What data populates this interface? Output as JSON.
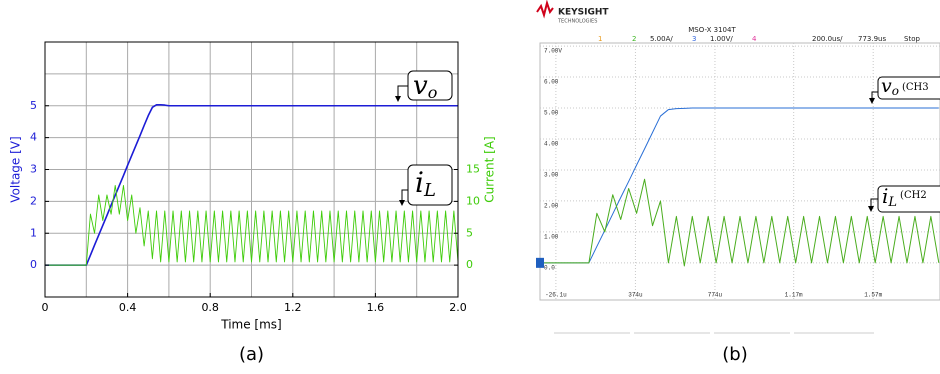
{
  "chart_data": [
    {
      "type": "line",
      "caption": "(a)",
      "xlabel": "Time [ms]",
      "ylabel": "Voltage [V]",
      "y2label": "Current [A]",
      "xlim": [
        0,
        2
      ],
      "xticks": [
        0,
        0.4,
        0.8,
        1.2,
        1.6,
        {
          "value": 2,
          "label": "2.0"
        }
      ],
      "xminor": [
        0.2,
        0.6,
        1.0,
        1.4,
        1.8
      ],
      "ylim": [
        -1,
        7
      ],
      "yticks": [
        0,
        1,
        2,
        3,
        4,
        5
      ],
      "yminor": [
        6
      ],
      "y2lim": [
        -5,
        35
      ],
      "y2ticks": [
        0,
        5,
        10,
        15
      ],
      "grid": true,
      "x": [
        0,
        0.02,
        0.04,
        0.06,
        0.08,
        0.1,
        0.12,
        0.14,
        0.16,
        0.18,
        0.2,
        0.22,
        0.24,
        0.26,
        0.28,
        0.3,
        0.32,
        0.34,
        0.36,
        0.38,
        0.4,
        0.42,
        0.44,
        0.46,
        0.48,
        0.5,
        0.52,
        0.54,
        0.56,
        0.58,
        0.6,
        0.62,
        0.64,
        0.66,
        0.68,
        0.7,
        0.72,
        0.74,
        0.76,
        0.78,
        0.8,
        0.82,
        0.84,
        0.86,
        0.88,
        0.9,
        0.92,
        0.94,
        0.96,
        0.98,
        1,
        1.02,
        1.04,
        1.06,
        1.08,
        1.1,
        1.12,
        1.14,
        1.16,
        1.18,
        1.2,
        1.22,
        1.24,
        1.26,
        1.28,
        1.3,
        1.32,
        1.34,
        1.36,
        1.38,
        1.4,
        1.42,
        1.44,
        1.46,
        1.48,
        1.5,
        1.52,
        1.54,
        1.56,
        1.58,
        1.6,
        1.62,
        1.64,
        1.66,
        1.68,
        1.7,
        1.72,
        1.74,
        1.76,
        1.78,
        1.8,
        1.82,
        1.84,
        1.86,
        1.88,
        1.9,
        1.92,
        1.94,
        1.96,
        1.98,
        2
      ],
      "series": [
        {
          "color": "#1c1cd6",
          "values": [
            0,
            0,
            0,
            0,
            0,
            0,
            0,
            0,
            0,
            0,
            0,
            0.31,
            0.63,
            0.94,
            1.25,
            1.56,
            1.88,
            2.19,
            2.5,
            2.81,
            3.13,
            3.44,
            3.75,
            4.06,
            4.38,
            4.69,
            4.95,
            5.03,
            5.03,
            5.02,
            5,
            5,
            5,
            5,
            5,
            5,
            5,
            5,
            5,
            5,
            5,
            5,
            5,
            5,
            5,
            5,
            5,
            5,
            5,
            5,
            5,
            5,
            5,
            5,
            5,
            5,
            5,
            5,
            5,
            5,
            5,
            5,
            5,
            5,
            5,
            5,
            5,
            5,
            5,
            5,
            5,
            5,
            5,
            5,
            5,
            5,
            5,
            5,
            5,
            5,
            5,
            5,
            5,
            5,
            5,
            5,
            5,
            5,
            5,
            5,
            5,
            5,
            5,
            5,
            5,
            5,
            5,
            5,
            5,
            5,
            5
          ]
        },
        {
          "color": "#3fcc0a",
          "axis": "y2",
          "values": [
            0,
            0,
            0,
            0,
            0,
            0,
            0,
            0,
            0,
            0,
            0,
            8,
            5,
            11,
            7,
            11,
            8,
            12.5,
            8,
            12.5,
            7,
            11,
            5,
            9,
            3,
            8.5,
            1,
            8.5,
            0.5,
            8.5,
            0.5,
            8.5,
            0.5,
            8.5,
            0.5,
            8.5,
            0.5,
            8.5,
            0.5,
            8.5,
            0.5,
            8.5,
            0.5,
            8.5,
            0.5,
            8.5,
            0.5,
            8.5,
            0.5,
            8.5,
            0.5,
            8.5,
            0.5,
            8.5,
            0.5,
            8.5,
            0.5,
            8.5,
            0.5,
            8.5,
            0.5,
            8.5,
            0.5,
            8.5,
            0.5,
            8.5,
            0.5,
            8.5,
            0.5,
            8.5,
            0.5,
            8.5,
            0.5,
            8.5,
            0.5,
            8.5,
            0.5,
            8.5,
            0.5,
            8.5,
            0.5,
            8.5,
            0.5,
            8.5,
            0.5,
            8.5,
            0.5,
            8.5,
            0.5,
            8.5,
            0.5,
            8.5,
            0.5,
            8.5,
            0.5,
            8.5,
            0.5,
            8.5,
            0.5,
            8.5,
            0.5
          ]
        }
      ],
      "annotations": [
        {
          "text": "v",
          "sub": "o"
        },
        {
          "text": "i",
          "sub": "L"
        }
      ]
    },
    {
      "type": "line",
      "caption": "(b)",
      "header": {
        "brand": "KEYSIGHT",
        "brand_sub": "TECHNOLOGIES",
        "model": "MSO-X 3104T",
        "channels": [
          {
            "label": "1",
            "color": "#e89a1c"
          },
          {
            "label": "2",
            "scale": "5.00A/",
            "color": "#3cb521"
          },
          {
            "label": "3",
            "scale": "1.00V/",
            "color": "#3366dd"
          },
          {
            "label": "4",
            "color": "#e0339a"
          }
        ],
        "timebase": "200.0us/",
        "delay": "773.9us",
        "status": "Stop"
      },
      "xlim": [
        -106,
        1906
      ],
      "xticks": [
        {
          "value": -26.1,
          "label": "-26.1u"
        },
        {
          "value": 374,
          "label": "374u"
        },
        {
          "value": 774,
          "label": "774u"
        },
        {
          "value": 1170,
          "label": "1.17m"
        },
        {
          "value": 1570,
          "label": "1.57m"
        }
      ],
      "ylim": [
        -1.2,
        7.1
      ],
      "yticks": [
        {
          "value": 7,
          "label": "7.00V"
        },
        {
          "value": 6,
          "label": "6.00"
        },
        {
          "value": 5,
          "label": "5.00"
        },
        {
          "value": 4,
          "label": "4.00"
        },
        {
          "value": 3,
          "label": "3.00"
        },
        {
          "value": 2,
          "label": "2.00"
        },
        {
          "value": 1,
          "label": "1.00"
        },
        {
          "value": 0,
          "label": "0.0"
        }
      ],
      "y2lim": [
        -6,
        35.5
      ],
      "grid": true,
      "x": [
        -100,
        -60,
        -20,
        20,
        60,
        100,
        140,
        180,
        220,
        260,
        300,
        340,
        380,
        420,
        460,
        500,
        540,
        580,
        620,
        660,
        700,
        740,
        780,
        820,
        860,
        900,
        940,
        980,
        1020,
        1060,
        1100,
        1140,
        1180,
        1220,
        1260,
        1300,
        1340,
        1380,
        1420,
        1460,
        1500,
        1540,
        1580,
        1620,
        1660,
        1700,
        1740,
        1780,
        1820,
        1860,
        1900
      ],
      "series": [
        {
          "color": "#2a6fd6",
          "values": [
            0,
            0,
            0,
            0,
            0,
            0,
            0,
            0.53,
            1.05,
            1.58,
            2.11,
            2.63,
            3.16,
            3.68,
            4.21,
            4.74,
            4.95,
            4.98,
            4.99,
            5,
            5,
            5,
            5,
            5,
            5,
            5,
            5,
            5,
            5,
            5,
            5,
            5,
            5,
            5,
            5,
            5,
            5,
            5,
            5,
            5,
            5,
            5,
            5,
            5,
            5,
            5,
            5,
            5,
            5,
            5,
            5
          ]
        },
        {
          "color": "#4aad1e",
          "axis": "y2",
          "values": [
            0,
            0,
            0,
            0,
            0,
            0,
            0,
            8,
            5,
            11,
            7,
            12,
            8,
            13.5,
            6,
            10,
            0,
            7.5,
            -0.5,
            7.5,
            0,
            7.5,
            0,
            7.5,
            0,
            7.5,
            0,
            7.5,
            0,
            7.5,
            0,
            7.5,
            0,
            7.5,
            0,
            7.5,
            0,
            7.5,
            0,
            7.5,
            0,
            7.5,
            0,
            7.5,
            0,
            7.5,
            0,
            7.5,
            0,
            7.5,
            0
          ]
        }
      ],
      "annotations": [
        {
          "text": "v",
          "sub": "o",
          "note": "(CH3"
        },
        {
          "text": "i",
          "sub": "L",
          "note": "(CH2"
        }
      ]
    }
  ]
}
